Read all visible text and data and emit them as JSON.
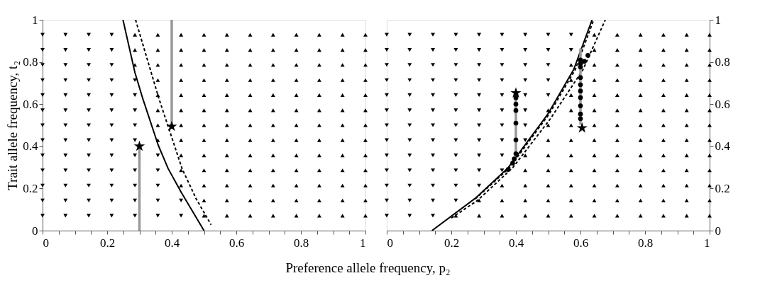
{
  "chart_data": [
    {
      "type": "scatter",
      "xlabel": "Preference allele frequency, p₂",
      "ylabel": "Trait allele frequency, t₂",
      "xlim": [
        0,
        1
      ],
      "ylim": [
        0,
        1
      ],
      "xticks": [
        0,
        {
          "value": 0.05,
          "label": null
        },
        {
          "value": 0.1,
          "label": null
        },
        {
          "value": 0.15,
          "label": null
        },
        0.2,
        {
          "value": 0.25,
          "label": null
        },
        {
          "value": 0.3,
          "label": null
        },
        {
          "value": 0.35,
          "label": null
        },
        0.4,
        {
          "value": 0.45,
          "label": null
        },
        {
          "value": 0.5,
          "label": null
        },
        {
          "value": 0.55,
          "label": null
        },
        0.6,
        {
          "value": 0.65,
          "label": null
        },
        {
          "value": 0.7,
          "label": null
        },
        {
          "value": 0.75,
          "label": null
        },
        0.8,
        {
          "value": 0.85,
          "label": null
        },
        {
          "value": 0.9,
          "label": null
        },
        {
          "value": 0.95,
          "label": null
        },
        1
      ],
      "yticks": [
        0,
        0.2,
        0.4,
        0.6,
        0.8,
        1
      ],
      "grid": false,
      "series": [
        {
          "marker": "triangle-down",
          "color": "#000000",
          "x": [
            0,
            0,
            0,
            0,
            0,
            0,
            0,
            0,
            0,
            0,
            0,
            0,
            0,
            0.071,
            0.071,
            0.071,
            0.071,
            0.071,
            0.071,
            0.071,
            0.071,
            0.071,
            0.071,
            0.071,
            0.071,
            0.071,
            0.143,
            0.143,
            0.143,
            0.143,
            0.143,
            0.143,
            0.143,
            0.143,
            0.143,
            0.143,
            0.143,
            0.143,
            0.143,
            0.214,
            0.214,
            0.214,
            0.214,
            0.214,
            0.214,
            0.214,
            0.214,
            0.214,
            0.214,
            0.214,
            0.214,
            0.214,
            0.286,
            0.286,
            0.286,
            0.286,
            0.286,
            0.286,
            0.286,
            0.286,
            0.286,
            0.286,
            0.357,
            0.357,
            0.357,
            0.357,
            0.357,
            0.429,
            0.429
          ],
          "values": [
            0.071,
            0.143,
            0.214,
            0.286,
            0.357,
            0.429,
            0.5,
            0.571,
            0.643,
            0.714,
            0.786,
            0.857,
            0.929,
            0.071,
            0.143,
            0.214,
            0.286,
            0.357,
            0.429,
            0.5,
            0.571,
            0.643,
            0.714,
            0.786,
            0.857,
            0.929,
            0.071,
            0.143,
            0.214,
            0.286,
            0.357,
            0.429,
            0.5,
            0.571,
            0.643,
            0.714,
            0.786,
            0.857,
            0.929,
            0.071,
            0.143,
            0.214,
            0.286,
            0.357,
            0.429,
            0.5,
            0.571,
            0.643,
            0.714,
            0.786,
            0.857,
            0.929,
            0.071,
            0.143,
            0.214,
            0.286,
            0.357,
            0.429,
            0.5,
            0.571,
            0.643,
            0.714,
            0.071,
            0.143,
            0.214,
            0.286,
            0.357,
            0.071,
            0.143
          ]
        },
        {
          "marker": "triangle",
          "color": "#000000",
          "x": [
            0.286,
            0.286,
            0.286,
            0.357,
            0.357,
            0.357,
            0.357,
            0.357,
            0.357,
            0.357,
            0.357,
            0.429,
            0.429,
            0.429,
            0.429,
            0.429,
            0.429,
            0.429,
            0.429,
            0.429,
            0.429,
            0.429,
            0.5,
            0.5,
            0.5,
            0.5,
            0.5,
            0.5,
            0.5,
            0.5,
            0.5,
            0.5,
            0.5,
            0.5,
            0.5,
            0.571,
            0.571,
            0.571,
            0.571,
            0.571,
            0.571,
            0.571,
            0.571,
            0.571,
            0.571,
            0.571,
            0.571,
            0.571,
            0.643,
            0.643,
            0.643,
            0.643,
            0.643,
            0.643,
            0.643,
            0.643,
            0.643,
            0.643,
            0.643,
            0.643,
            0.643,
            0.714,
            0.714,
            0.714,
            0.714,
            0.714,
            0.714,
            0.714,
            0.714,
            0.714,
            0.714,
            0.714,
            0.714,
            0.714,
            0.786,
            0.786,
            0.786,
            0.786,
            0.786,
            0.786,
            0.786,
            0.786,
            0.786,
            0.786,
            0.786,
            0.786,
            0.786,
            0.857,
            0.857,
            0.857,
            0.857,
            0.857,
            0.857,
            0.857,
            0.857,
            0.857,
            0.857,
            0.857,
            0.857,
            0.857,
            0.929,
            0.929,
            0.929,
            0.929,
            0.929,
            0.929,
            0.929,
            0.929,
            0.929,
            0.929,
            0.929,
            0.929,
            0.929,
            1,
            1,
            1,
            1,
            1,
            1,
            1,
            1,
            1,
            1,
            1,
            1,
            1
          ],
          "values": [
            0.786,
            0.857,
            0.929,
            0.429,
            0.5,
            0.571,
            0.643,
            0.714,
            0.786,
            0.857,
            0.929,
            0.214,
            0.286,
            0.357,
            0.429,
            0.5,
            0.571,
            0.643,
            0.714,
            0.786,
            0.857,
            0.929,
            0.071,
            0.143,
            0.214,
            0.286,
            0.357,
            0.429,
            0.5,
            0.571,
            0.643,
            0.714,
            0.786,
            0.857,
            0.929,
            0.071,
            0.143,
            0.214,
            0.286,
            0.357,
            0.429,
            0.5,
            0.571,
            0.643,
            0.714,
            0.786,
            0.857,
            0.929,
            0.071,
            0.143,
            0.214,
            0.286,
            0.357,
            0.429,
            0.5,
            0.571,
            0.643,
            0.714,
            0.786,
            0.857,
            0.929,
            0.071,
            0.143,
            0.214,
            0.286,
            0.357,
            0.429,
            0.5,
            0.571,
            0.643,
            0.714,
            0.786,
            0.857,
            0.929,
            0.071,
            0.143,
            0.214,
            0.286,
            0.357,
            0.429,
            0.5,
            0.571,
            0.643,
            0.714,
            0.786,
            0.857,
            0.929,
            0.071,
            0.143,
            0.214,
            0.286,
            0.357,
            0.429,
            0.5,
            0.571,
            0.643,
            0.714,
            0.786,
            0.857,
            0.929,
            0.071,
            0.143,
            0.214,
            0.286,
            0.357,
            0.429,
            0.5,
            0.571,
            0.643,
            0.714,
            0.786,
            0.857,
            0.929,
            0.071,
            0.143,
            0.214,
            0.286,
            0.357,
            0.429,
            0.5,
            0.571,
            0.643,
            0.714,
            0.786,
            0.857,
            0.929
          ]
        },
        {
          "type": "line",
          "line_style": "solid",
          "color": "#000000",
          "x": [
            0.249,
            0.286,
            0.31,
            0.358,
            0.389,
            0.429,
            0.5
          ],
          "values": [
            1,
            0.75,
            0.628,
            0.406,
            0.294,
            0.183,
            0
          ]
        },
        {
          "type": "line",
          "line_style": "dashed",
          "color": "#000000",
          "x": [
            0.288,
            0.36,
            0.432,
            0.476,
            0.522
          ],
          "values": [
            1,
            0.628,
            0.294,
            0.15,
            0.028
          ]
        },
        {
          "type": "line",
          "line_style": "solid",
          "color": "#999999",
          "x": [
            0.3,
            0.3
          ],
          "values": [
            0,
            0.4
          ]
        },
        {
          "type": "line",
          "line_style": "solid",
          "color": "#999999",
          "x": [
            0.4,
            0.4
          ],
          "values": [
            0.494,
            1
          ]
        },
        {
          "marker": "star",
          "color": "#000000",
          "x": [
            0.3,
            0.4
          ],
          "values": [
            0.4,
            0.494
          ]
        }
      ]
    },
    {
      "type": "scatter",
      "xlim": [
        0,
        1
      ],
      "ylim": [
        0,
        1
      ],
      "xticks": [
        0,
        {
          "value": 0.05,
          "label": null
        },
        {
          "value": 0.1,
          "label": null
        },
        {
          "value": 0.15,
          "label": null
        },
        0.2,
        {
          "value": 0.25,
          "label": null
        },
        {
          "value": 0.3,
          "label": null
        },
        {
          "value": 0.35,
          "label": null
        },
        0.4,
        {
          "value": 0.45,
          "label": null
        },
        {
          "value": 0.5,
          "label": null
        },
        {
          "value": 0.55,
          "label": null
        },
        0.6,
        {
          "value": 0.65,
          "label": null
        },
        {
          "value": 0.7,
          "label": null
        },
        {
          "value": 0.75,
          "label": null
        },
        0.8,
        {
          "value": 0.85,
          "label": null
        },
        {
          "value": 0.9,
          "label": null
        },
        {
          "value": 0.95,
          "label": null
        },
        1
      ],
      "yticks": [
        0,
        0.2,
        0.4,
        0.6,
        0.8,
        1
      ],
      "grid": false,
      "series": [
        {
          "marker": "triangle-down",
          "color": "#000000",
          "x": [
            0,
            0,
            0,
            0,
            0,
            0,
            0,
            0,
            0,
            0,
            0,
            0,
            0,
            0.071,
            0.071,
            0.071,
            0.071,
            0.071,
            0.071,
            0.071,
            0.071,
            0.071,
            0.071,
            0.071,
            0.071,
            0.071,
            0.143,
            0.143,
            0.143,
            0.143,
            0.143,
            0.143,
            0.143,
            0.143,
            0.143,
            0.143,
            0.143,
            0.143,
            0.143,
            0.214,
            0.214,
            0.214,
            0.214,
            0.214,
            0.214,
            0.214,
            0.214,
            0.214,
            0.214,
            0.214,
            0.214,
            0.286,
            0.286,
            0.286,
            0.286,
            0.286,
            0.286,
            0.286,
            0.286,
            0.286,
            0.286,
            0.286,
            0.357,
            0.357,
            0.357,
            0.357,
            0.357,
            0.357,
            0.357,
            0.357,
            0.357,
            0.357,
            0.429,
            0.429,
            0.429,
            0.429,
            0.429,
            0.429,
            0.429,
            0.429,
            0.5,
            0.5,
            0.5,
            0.5,
            0.5,
            0.571,
            0.571
          ],
          "values": [
            0.071,
            0.143,
            0.214,
            0.286,
            0.357,
            0.429,
            0.5,
            0.571,
            0.643,
            0.714,
            0.786,
            0.857,
            0.929,
            0.071,
            0.143,
            0.214,
            0.286,
            0.357,
            0.429,
            0.5,
            0.571,
            0.643,
            0.714,
            0.786,
            0.857,
            0.929,
            0.071,
            0.143,
            0.214,
            0.286,
            0.357,
            0.429,
            0.5,
            0.571,
            0.643,
            0.714,
            0.786,
            0.857,
            0.929,
            0.143,
            0.214,
            0.286,
            0.357,
            0.429,
            0.5,
            0.571,
            0.643,
            0.714,
            0.786,
            0.857,
            0.929,
            0.214,
            0.286,
            0.357,
            0.429,
            0.5,
            0.571,
            0.643,
            0.714,
            0.786,
            0.857,
            0.929,
            0.286,
            0.357,
            0.429,
            0.5,
            0.571,
            0.643,
            0.714,
            0.786,
            0.857,
            0.929,
            0.429,
            0.5,
            0.571,
            0.643,
            0.714,
            0.786,
            0.857,
            0.929,
            0.643,
            0.714,
            0.786,
            0.857,
            0.929,
            0.857,
            0.929
          ]
        },
        {
          "marker": "triangle",
          "color": "#000000",
          "x": [
            0.214,
            0.286,
            0.286,
            0.357,
            0.357,
            0.357,
            0.429,
            0.429,
            0.429,
            0.429,
            0.429,
            0.5,
            0.5,
            0.5,
            0.5,
            0.5,
            0.5,
            0.5,
            0.5,
            0.571,
            0.571,
            0.571,
            0.571,
            0.571,
            0.571,
            0.571,
            0.571,
            0.571,
            0.571,
            0.571,
            0.643,
            0.643,
            0.643,
            0.643,
            0.643,
            0.643,
            0.643,
            0.643,
            0.643,
            0.643,
            0.643,
            0.643,
            0.643,
            0.714,
            0.714,
            0.714,
            0.714,
            0.714,
            0.714,
            0.714,
            0.714,
            0.714,
            0.714,
            0.714,
            0.714,
            0.714,
            0.786,
            0.786,
            0.786,
            0.786,
            0.786,
            0.786,
            0.786,
            0.786,
            0.786,
            0.786,
            0.786,
            0.786,
            0.786,
            0.857,
            0.857,
            0.857,
            0.857,
            0.857,
            0.857,
            0.857,
            0.857,
            0.857,
            0.857,
            0.857,
            0.857,
            0.857,
            0.929,
            0.929,
            0.929,
            0.929,
            0.929,
            0.929,
            0.929,
            0.929,
            0.929,
            0.929,
            0.929,
            0.929,
            0.929,
            1,
            1,
            1,
            1,
            1,
            1,
            1,
            1,
            1,
            1,
            1,
            1,
            1
          ],
          "values": [
            0.071,
            0.071,
            0.143,
            0.071,
            0.143,
            0.214,
            0.071,
            0.143,
            0.214,
            0.286,
            0.357,
            0.071,
            0.143,
            0.214,
            0.286,
            0.357,
            0.429,
            0.5,
            0.571,
            0.071,
            0.143,
            0.214,
            0.286,
            0.357,
            0.429,
            0.5,
            0.571,
            0.643,
            0.714,
            0.786,
            0.071,
            0.143,
            0.214,
            0.286,
            0.357,
            0.429,
            0.5,
            0.571,
            0.643,
            0.714,
            0.786,
            0.857,
            0.929,
            0.071,
            0.143,
            0.214,
            0.286,
            0.357,
            0.429,
            0.5,
            0.571,
            0.643,
            0.714,
            0.786,
            0.857,
            0.929,
            0.071,
            0.143,
            0.214,
            0.286,
            0.357,
            0.429,
            0.5,
            0.571,
            0.643,
            0.714,
            0.786,
            0.857,
            0.929,
            0.071,
            0.143,
            0.214,
            0.286,
            0.357,
            0.429,
            0.5,
            0.571,
            0.643,
            0.714,
            0.786,
            0.857,
            0.929,
            0.071,
            0.143,
            0.214,
            0.286,
            0.357,
            0.429,
            0.5,
            0.571,
            0.643,
            0.714,
            0.786,
            0.857,
            0.929,
            0.071,
            0.143,
            0.214,
            0.286,
            0.357,
            0.429,
            0.5,
            0.571,
            0.643,
            0.714,
            0.786,
            0.857,
            0.929
          ]
        },
        {
          "type": "line",
          "line_style": "solid",
          "color": "#000000",
          "x": [
            0.14,
            0.274,
            0.376,
            0.499,
            0.579,
            0.636
          ],
          "values": [
            0,
            0.153,
            0.298,
            0.553,
            0.764,
            1
          ]
        },
        {
          "type": "line",
          "line_style": "dashed",
          "color": "#000000",
          "x": [
            0.274,
            0.38,
            0.503,
            0.584,
            0.641
          ],
          "values": [
            0.15,
            0.298,
            0.553,
            0.764,
            1
          ]
        },
        {
          "type": "line",
          "line_style": "dashed",
          "color": "#000000",
          "x": [
            0.2,
            0.28,
            0.39,
            0.507,
            0.608,
            0.677
          ],
          "values": [
            0.06,
            0.142,
            0.298,
            0.531,
            0.764,
            1
          ]
        },
        {
          "type": "line",
          "line_style": "solid",
          "color": "#999999",
          "x": [
            0.4,
            0.4
          ],
          "values": [
            0.353,
            0.653
          ]
        },
        {
          "type": "line",
          "line_style": "solid",
          "color": "#999999",
          "x": [
            0.6,
            0.6
          ],
          "values": [
            0.502,
            0.864
          ]
        },
        {
          "marker": "circle",
          "color": "#000000",
          "x": [
            0.4,
            0.4,
            0.4,
            0.4,
            0.4,
            0.4,
            0.395,
            0.39,
            0.376,
            0.6,
            0.6,
            0.6,
            0.6,
            0.6,
            0.6,
            0.6,
            0.6,
            0.6,
            0.6,
            0.612,
            0.623
          ],
          "values": [
            0.63,
            0.6,
            0.57,
            0.51,
            0.43,
            0.365,
            0.34,
            0.32,
            0.29,
            0.531,
            0.553,
            0.592,
            0.631,
            0.662,
            0.692,
            0.726,
            0.776,
            0.792,
            0.809,
            0.803,
            0.831
          ]
        },
        {
          "marker": "star",
          "color": "#000000",
          "x": [
            0.4,
            0.605
          ],
          "values": [
            0.653,
            0.487
          ]
        }
      ]
    }
  ]
}
